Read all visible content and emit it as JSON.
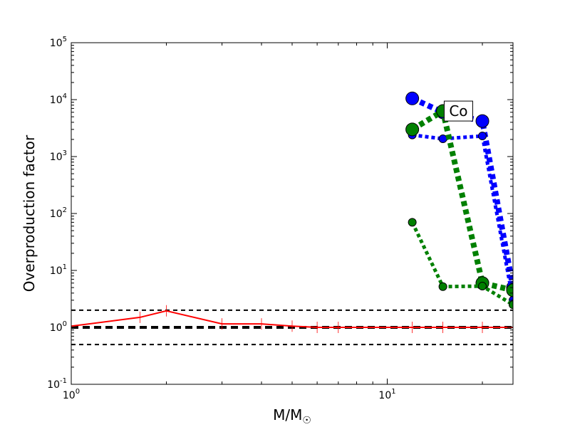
{
  "chart_data": {
    "type": "line",
    "title": "",
    "xlabel": "M/M",
    "xlabel_sub": "☉",
    "ylabel": "Overproduction factor",
    "xscale": "log",
    "yscale": "log",
    "xlim": [
      1,
      25
    ],
    "ylim": [
      0.1,
      100000
    ],
    "grid": false,
    "legend": "none",
    "xticks": [
      {
        "value": 1,
        "base": "10",
        "exp": "0"
      },
      {
        "value": 10,
        "base": "10",
        "exp": "1"
      }
    ],
    "yticks": [
      {
        "value": 0.1,
        "base": "10",
        "exp": "-1"
      },
      {
        "value": 1,
        "base": "10",
        "exp": "0"
      },
      {
        "value": 10,
        "base": "10",
        "exp": "1"
      },
      {
        "value": 100,
        "base": "10",
        "exp": "2"
      },
      {
        "value": 1000,
        "base": "10",
        "exp": "3"
      },
      {
        "value": 10000,
        "base": "10",
        "exp": "4"
      },
      {
        "value": 100000,
        "base": "10",
        "exp": "5"
      }
    ],
    "annotation": {
      "text": "Co",
      "x": 16.8,
      "y": 6300
    },
    "reference_lines": [
      {
        "y": 1,
        "color": "#000000",
        "dash": "heavy"
      },
      {
        "y": 2,
        "color": "#000000",
        "dash": "thin"
      },
      {
        "y": 0.5,
        "color": "#000000",
        "dash": "thin"
      }
    ],
    "series": [
      {
        "color": "#ff0000",
        "style": "solid",
        "width": 2,
        "marker": "tick",
        "x": [
          1,
          1.65,
          2,
          3,
          4,
          5,
          6,
          7,
          12,
          15,
          20,
          25
        ],
        "y": [
          1.05,
          1.5,
          1.95,
          1.15,
          1.15,
          1.05,
          1.0,
          1.0,
          1.0,
          1.0,
          1.0,
          1.0
        ]
      },
      {
        "color": "#0000ff",
        "style": "dotted",
        "width": 8,
        "marker": "circle",
        "marker_size": 9,
        "x": [
          12,
          15,
          20,
          25
        ],
        "y": [
          10500,
          6000,
          4200,
          5
        ]
      },
      {
        "color": "#0000ff",
        "style": "dotted",
        "width": 5,
        "marker": "circle",
        "marker_size": 5.5,
        "x": [
          12,
          15,
          20,
          25
        ],
        "y": [
          2400,
          2050,
          2300,
          3
        ]
      },
      {
        "color": "#008000",
        "style": "dotted",
        "width": 8,
        "marker": "circle",
        "marker_size": 9,
        "x": [
          12,
          15,
          20,
          25
        ],
        "y": [
          3000,
          6300,
          6,
          4.5
        ]
      },
      {
        "color": "#008000",
        "style": "dotted",
        "width": 5,
        "marker": "circle",
        "marker_size": 5.5,
        "x": [
          12,
          15,
          20,
          25
        ],
        "y": [
          70,
          5.2,
          5.3,
          2.5
        ]
      }
    ]
  }
}
